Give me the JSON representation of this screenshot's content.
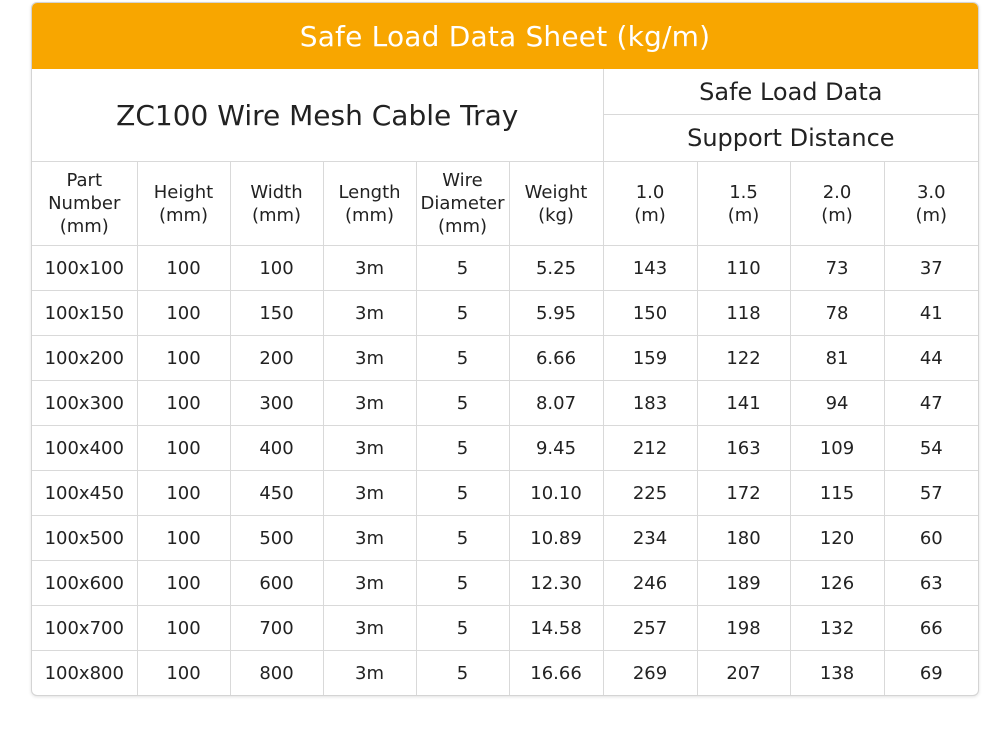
{
  "title": "Safe Load Data Sheet (kg/m)",
  "product": "ZC100  Wire Mesh Cable Tray",
  "group_header": "Safe Load Data",
  "group_subheader": "Support Distance",
  "columns": [
    [
      "Part",
      "Number",
      "(mm)"
    ],
    [
      "Height",
      "(mm)"
    ],
    [
      "Width",
      "(mm)"
    ],
    [
      "Length",
      "(mm)"
    ],
    [
      "Wire",
      "Diameter",
      "(mm)"
    ],
    [
      "Weight",
      "(kg)"
    ],
    [
      "1.0",
      "(m)"
    ],
    [
      "1.5",
      "(m)"
    ],
    [
      "2.0",
      "(m)"
    ],
    [
      "3.0",
      "(m)"
    ]
  ],
  "rows": [
    [
      "100x100",
      "100",
      "100",
      "3m",
      "5",
      "5.25",
      "143",
      "110",
      "73",
      "37"
    ],
    [
      "100x150",
      "100",
      "150",
      "3m",
      "5",
      "5.95",
      "150",
      "118",
      "78",
      "41"
    ],
    [
      "100x200",
      "100",
      "200",
      "3m",
      "5",
      "6.66",
      "159",
      "122",
      "81",
      "44"
    ],
    [
      "100x300",
      "100",
      "300",
      "3m",
      "5",
      "8.07",
      "183",
      "141",
      "94",
      "47"
    ],
    [
      "100x400",
      "100",
      "400",
      "3m",
      "5",
      "9.45",
      "212",
      "163",
      "109",
      "54"
    ],
    [
      "100x450",
      "100",
      "450",
      "3m",
      "5",
      "10.10",
      "225",
      "172",
      "115",
      "57"
    ],
    [
      "100x500",
      "100",
      "500",
      "3m",
      "5",
      "10.89",
      "234",
      "180",
      "120",
      "60"
    ],
    [
      "100x600",
      "100",
      "600",
      "3m",
      "5",
      "12.30",
      "246",
      "189",
      "126",
      "63"
    ],
    [
      "100x700",
      "100",
      "700",
      "3m",
      "5",
      "14.58",
      "257",
      "198",
      "132",
      "66"
    ],
    [
      "100x800",
      "100",
      "800",
      "3m",
      "5",
      "16.66",
      "269",
      "207",
      "138",
      "69"
    ]
  ],
  "colors": {
    "banner": "#f8a600",
    "banner_text": "#ffffff",
    "text": "#222222",
    "border": "#d9d9d9"
  }
}
